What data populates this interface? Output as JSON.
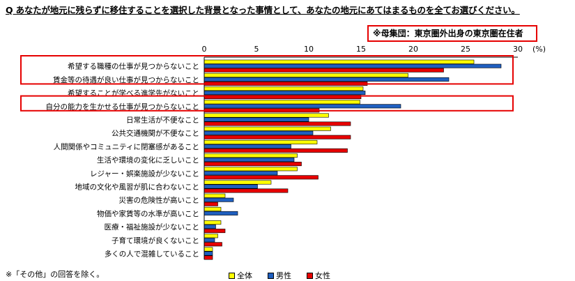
{
  "question": "Q あなたが地元に残らずに移住することを選択した背景となった事情として、あなたの地元にあてはまるものを全てお選びください。",
  "population_note": "※母集団：東京圏外出身の東京圏在住者",
  "footnote": "※「その他」の回答を除く。",
  "colors": {
    "全体": "#ffff00",
    "男性": "#1f5fbf",
    "女性": "#e60000",
    "highlight": "#e60000"
  },
  "chart_data": {
    "type": "bar",
    "orientation": "horizontal",
    "unit": "(%)",
    "xlim": [
      0,
      30
    ],
    "xticks": [
      "0",
      "5",
      "10",
      "15",
      "20",
      "25",
      "30"
    ],
    "legend_position": "bottom",
    "categories": [
      "希望する職種の仕事が見つからないこと",
      "賃金等の待遇が良い仕事が見つからないこと",
      "希望することが学べる進学先がないこと",
      "自分の能力を生かせる仕事が見つからないこと",
      "日常生活が不便なこと",
      "公共交通機関が不便なこと",
      "人間関係やコミュニティに閉塞感があること",
      "生活や環境の変化に乏しいこと",
      "レジャー・娯楽施設が少ないこと",
      "地域の文化や風習が肌に合わないこと",
      "災害の危険性が高いこと",
      "物価や家賃等の水準が高いこと",
      "医療・福祉施設が少ないこと",
      "子育て環境が良くないこと",
      "多くの人で混雑していること"
    ],
    "series": [
      {
        "name": "全体",
        "values": [
          25.8,
          19.5,
          15.2,
          14.9,
          11.9,
          12.1,
          10.8,
          8.9,
          8.9,
          6.4,
          2.0,
          1.6,
          1.6,
          1.3,
          0.8
        ]
      },
      {
        "name": "男性",
        "values": [
          28.4,
          23.4,
          15.4,
          18.8,
          10.0,
          10.4,
          8.3,
          8.6,
          7.0,
          5.1,
          2.8,
          3.2,
          1.1,
          1.0,
          0.8
        ]
      },
      {
        "name": "女性",
        "values": [
          22.9,
          15.6,
          15.0,
          11.0,
          14.0,
          14.0,
          13.7,
          9.3,
          10.9,
          8.0,
          1.3,
          0.0,
          2.0,
          1.7,
          0.8
        ]
      }
    ],
    "highlighted_categories": [
      0,
      1,
      3
    ]
  }
}
